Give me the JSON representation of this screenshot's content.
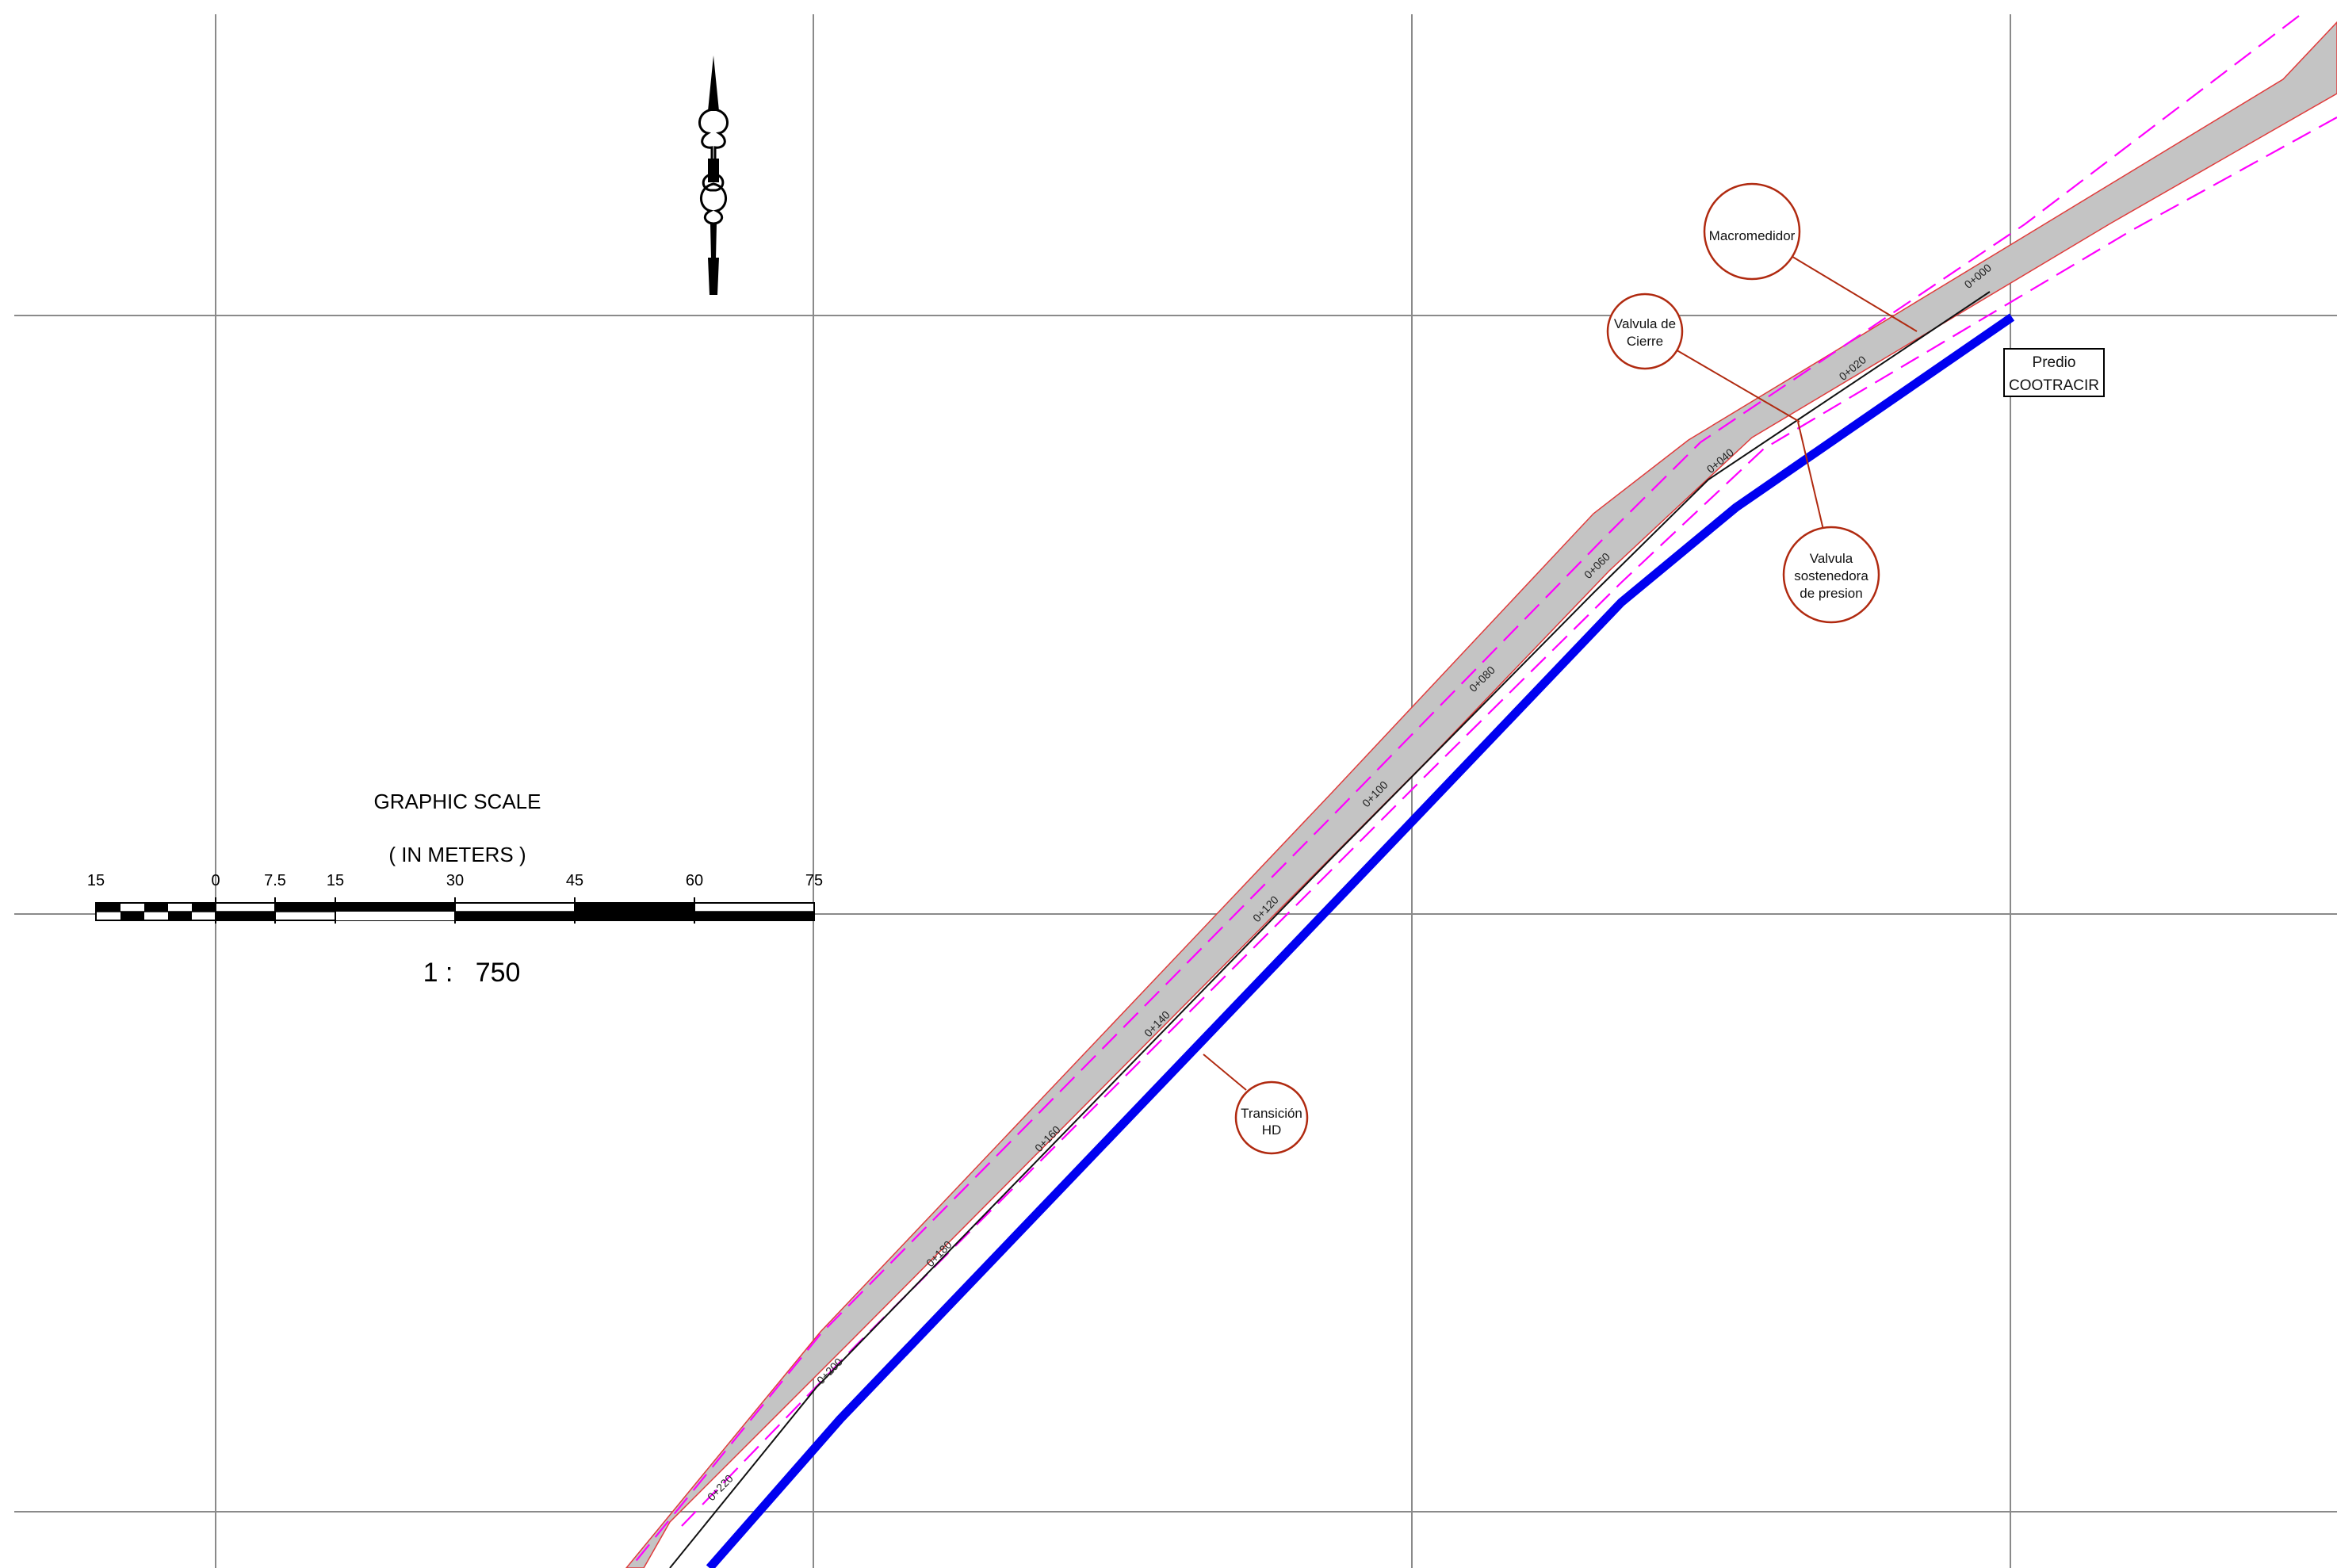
{
  "scale": {
    "title": "GRAPHIC SCALE",
    "units": "( IN METERS )",
    "ratio": "1 :   750",
    "ticks": [
      "15",
      "0",
      "7.5",
      "15",
      "30",
      "45",
      "60",
      "75"
    ]
  },
  "stations": [
    "0+000",
    "0+020",
    "0+040",
    "0+060",
    "0+080",
    "0+100",
    "0+120",
    "0+140",
    "0+160",
    "0+180",
    "0+200",
    "0+220"
  ],
  "callouts": {
    "macromedidor": "Macromedidor",
    "valvula_cierre": [
      "Valvula de",
      "Cierre"
    ],
    "valvula_sostenedora": [
      "Valvula",
      "sostenedora",
      "de presion"
    ],
    "transicion": [
      "Transición",
      "HD"
    ]
  },
  "property_label": [
    "Predio",
    "COOTRACIR"
  ],
  "colors": {
    "corridor_fill": "#c4c4c4",
    "corridor_edge": "#e03c3c",
    "right_of_way": "#ff00ff",
    "pipeline": "#0000f0",
    "callout_stroke": "#b02a10",
    "grid": "#8a8a8a"
  },
  "icons": {
    "north_arrow": "north-arrow-icon"
  }
}
